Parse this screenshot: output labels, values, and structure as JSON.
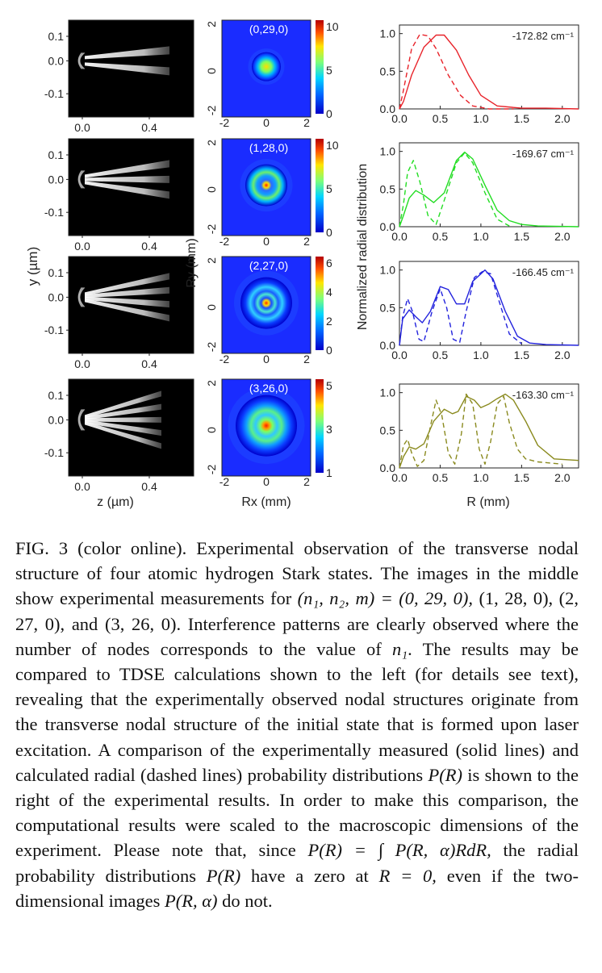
{
  "figure": {
    "left_column": {
      "y_ticks": [
        "0.1",
        "0.0",
        "-0.1"
      ],
      "x_ticks": [
        "0.0",
        "0.4"
      ],
      "ylabel": "y (µm)",
      "xlabel": "z (µm)"
    },
    "middle_column": {
      "ticks": [
        "2",
        "0",
        "-2"
      ],
      "x_ticks": [
        "-2",
        "0",
        "2"
      ],
      "ylabel": "Ry (mm)",
      "xlabel": "Rx (mm)",
      "states": [
        "(0,29,0)",
        "(1,28,0)",
        "(2,27,0)",
        "(3,26,0)"
      ],
      "colorbars": [
        [
          "10",
          "5",
          "0"
        ],
        [
          "10",
          "5",
          "0"
        ],
        [
          "6",
          "4",
          "2",
          "0"
        ],
        [
          "5",
          "3",
          "1"
        ]
      ]
    },
    "right_column": {
      "ylabel": "Normalized radial distribution",
      "xlabel": "R (mm)",
      "y_ticks": [
        "1.0",
        "0.5",
        "0.0"
      ],
      "x_ticks": [
        "0.0",
        "0.5",
        "1.0",
        "1.5",
        "2.0"
      ],
      "energies": [
        "-172.82 cm⁻¹",
        "-169.67 cm⁻¹",
        "-166.45 cm⁻¹",
        "-163.30 cm⁻¹"
      ],
      "colors": [
        "#e8232a",
        "#22dd22",
        "#2222dd",
        "#8a8a1e"
      ]
    }
  },
  "chart_data": [
    {
      "type": "line",
      "title": "",
      "xlabel": "R (mm)",
      "ylabel": "Normalized radial distribution",
      "xlim": [
        0,
        2.2
      ],
      "ylim": [
        0,
        1.05
      ],
      "annotation": "-172.82 cm⁻¹",
      "series": [
        {
          "style": "solid",
          "x": [
            0,
            0.05,
            0.15,
            0.3,
            0.45,
            0.55,
            0.7,
            0.85,
            1.0,
            1.2,
            1.5,
            1.8,
            2.2
          ],
          "y": [
            0,
            0.1,
            0.45,
            0.82,
            0.98,
            0.98,
            0.78,
            0.45,
            0.18,
            0.04,
            0.01,
            0.01,
            0.0
          ]
        },
        {
          "style": "dashed",
          "x": [
            0,
            0.05,
            0.15,
            0.25,
            0.35,
            0.45,
            0.6,
            0.75,
            0.9,
            1.1,
            1.4
          ],
          "y": [
            0,
            0.25,
            0.8,
            0.99,
            0.97,
            0.8,
            0.45,
            0.18,
            0.04,
            0.0,
            0.0
          ]
        }
      ]
    },
    {
      "type": "line",
      "title": "",
      "xlabel": "R (mm)",
      "ylabel": "Normalized radial distribution",
      "xlim": [
        0,
        2.2
      ],
      "ylim": [
        0,
        1.05
      ],
      "annotation": "-169.67 cm⁻¹",
      "series": [
        {
          "style": "solid",
          "x": [
            0,
            0.05,
            0.12,
            0.2,
            0.3,
            0.42,
            0.55,
            0.7,
            0.8,
            0.9,
            1.05,
            1.2,
            1.35,
            1.5,
            1.7,
            2.2
          ],
          "y": [
            0,
            0.15,
            0.38,
            0.48,
            0.42,
            0.32,
            0.45,
            0.88,
            0.99,
            0.9,
            0.55,
            0.22,
            0.08,
            0.03,
            0.01,
            0.0
          ]
        },
        {
          "style": "dashed",
          "x": [
            0,
            0.05,
            0.1,
            0.17,
            0.25,
            0.35,
            0.45,
            0.55,
            0.7,
            0.8,
            0.9,
            1.05,
            1.2,
            1.35
          ],
          "y": [
            0,
            0.3,
            0.72,
            0.88,
            0.6,
            0.15,
            0.03,
            0.35,
            0.85,
            0.98,
            0.85,
            0.45,
            0.1,
            0.01
          ]
        }
      ]
    },
    {
      "type": "line",
      "title": "",
      "xlabel": "R (mm)",
      "ylabel": "Normalized radial distribution",
      "xlim": [
        0,
        2.2
      ],
      "ylim": [
        0,
        1.05
      ],
      "annotation": "-166.45 cm⁻¹",
      "series": [
        {
          "style": "solid",
          "x": [
            0,
            0.04,
            0.12,
            0.2,
            0.28,
            0.38,
            0.5,
            0.6,
            0.7,
            0.8,
            0.9,
            1.05,
            1.15,
            1.3,
            1.45,
            1.6,
            1.8,
            2.2
          ],
          "y": [
            0,
            0.35,
            0.47,
            0.38,
            0.3,
            0.45,
            0.78,
            0.74,
            0.55,
            0.55,
            0.85,
            1.0,
            0.88,
            0.45,
            0.12,
            0.03,
            0.01,
            0.0
          ]
        },
        {
          "style": "dashed",
          "x": [
            0,
            0.04,
            0.1,
            0.16,
            0.24,
            0.3,
            0.4,
            0.5,
            0.58,
            0.66,
            0.74,
            0.82,
            0.92,
            1.02,
            1.12,
            1.22,
            1.35,
            1.5
          ],
          "y": [
            0,
            0.38,
            0.62,
            0.45,
            0.08,
            0.05,
            0.45,
            0.75,
            0.5,
            0.08,
            0.04,
            0.45,
            0.9,
            0.98,
            0.95,
            0.6,
            0.15,
            0.02
          ]
        }
      ]
    },
    {
      "type": "line",
      "title": "",
      "xlabel": "R (mm)",
      "ylabel": "Normalized radial distribution",
      "xlim": [
        0,
        2.2
      ],
      "ylim": [
        0,
        1.05
      ],
      "annotation": "-163.30 cm⁻¹",
      "series": [
        {
          "style": "solid",
          "x": [
            0,
            0.05,
            0.12,
            0.2,
            0.3,
            0.42,
            0.55,
            0.65,
            0.72,
            0.82,
            0.92,
            1.0,
            1.1,
            1.2,
            1.3,
            1.4,
            1.55,
            1.7,
            1.9,
            2.2
          ],
          "y": [
            0,
            0.15,
            0.28,
            0.25,
            0.32,
            0.62,
            0.78,
            0.72,
            0.75,
            0.95,
            0.9,
            0.8,
            0.85,
            0.92,
            0.98,
            0.9,
            0.62,
            0.3,
            0.12,
            0.1
          ]
        },
        {
          "style": "dashed",
          "x": [
            0,
            0.05,
            0.1,
            0.15,
            0.22,
            0.3,
            0.38,
            0.45,
            0.52,
            0.6,
            0.68,
            0.76,
            0.82,
            0.9,
            0.98,
            1.05,
            1.12,
            1.2,
            1.28,
            1.35,
            1.45,
            1.55,
            1.7,
            2.0
          ],
          "y": [
            0,
            0.3,
            0.38,
            0.2,
            0.02,
            0.1,
            0.55,
            0.9,
            0.7,
            0.2,
            0.05,
            0.45,
            0.98,
            0.85,
            0.25,
            0.05,
            0.35,
            0.85,
            0.95,
            0.6,
            0.25,
            0.12,
            0.08,
            0.05
          ]
        }
      ]
    }
  ],
  "caption": {
    "fig_label": "FIG. 3",
    "p1": " (color online). Experimental observation of the transverse nodal structure of four atomic hydrogen Stark states. The images in the middle show experimental measurements for ",
    "m1": "(n₁, n₂, m) = (0, 29, 0),",
    "p2": " (1, 28, 0), (2, 27, 0), and (3, 26, 0). Interference patterns are clearly observed where the number of nodes corresponds to the value of ",
    "m2": "n₁",
    "p3": ". The results may be compared to TDSE calculations shown to the left (for details see text), revealing that the experimentally observed nodal structures originate from the transverse nodal structure of the initial state that is formed upon laser excitation. A comparison of the experimentally measured (solid lines) and calculated radial (dashed lines) probability distributions ",
    "m3": "P(R)",
    "p4": " is shown to the right of the experimental results. In order to make this comparison, the computational results were scaled to the macroscopic dimensions of the experiment. Please note that, since ",
    "m4": "P(R) = ∫ P(R, α)RdR,",
    "p5": " the radial probability distributions ",
    "m5": "P(R)",
    "p6": " have a zero at ",
    "m6": "R = 0,",
    "p7": " even if the two-dimensional images ",
    "m7": "P(R, α)",
    "p8": " do not."
  }
}
